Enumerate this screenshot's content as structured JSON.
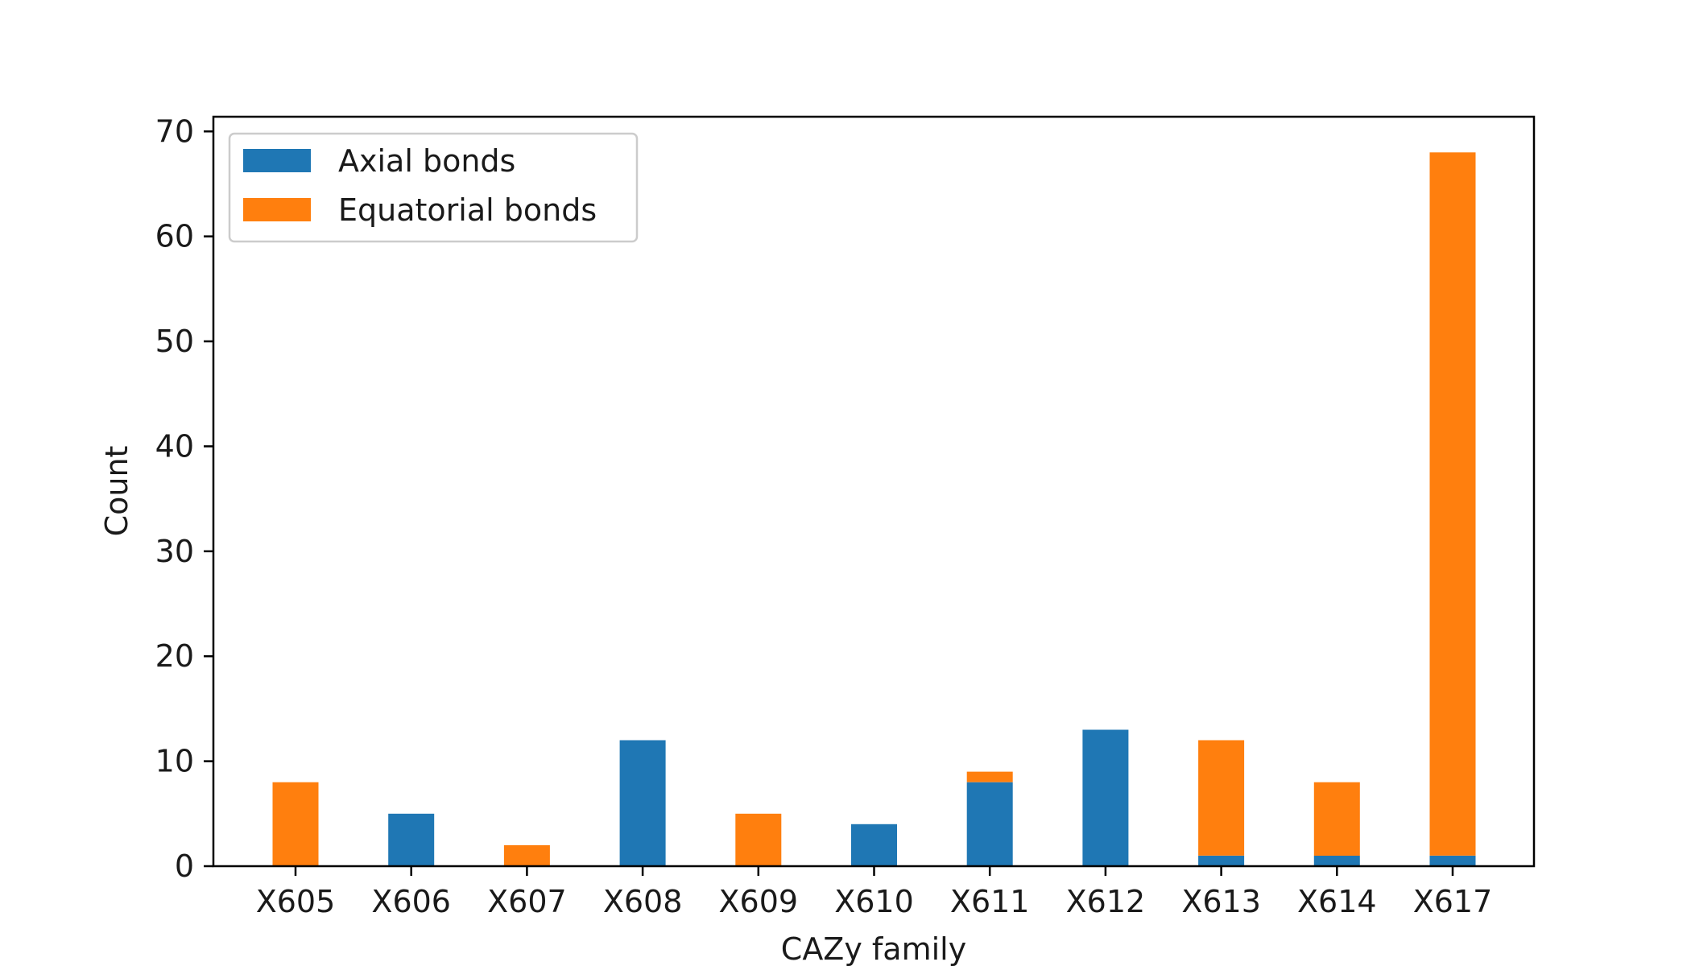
{
  "chart_data": {
    "type": "bar",
    "stacked": true,
    "categories": [
      "X605",
      "X606",
      "X607",
      "X608",
      "X609",
      "X610",
      "X611",
      "X612",
      "X613",
      "X614",
      "X617"
    ],
    "series": [
      {
        "name": "Axial bonds",
        "color": "#1f77b4",
        "values": [
          0,
          5,
          0,
          12,
          0,
          4,
          8,
          13,
          1,
          1,
          1
        ]
      },
      {
        "name": "Equatorial bonds",
        "color": "#ff7f0e",
        "values": [
          8,
          0,
          2,
          0,
          5,
          0,
          1,
          0,
          11,
          7,
          67
        ]
      }
    ],
    "title": "",
    "xlabel": "CAZy family",
    "ylabel": "Count",
    "ylim": [
      0,
      71.4
    ],
    "yticks": [
      0,
      10,
      20,
      30,
      40,
      50,
      60,
      70
    ],
    "grid": false,
    "legend_position": "top-left"
  }
}
